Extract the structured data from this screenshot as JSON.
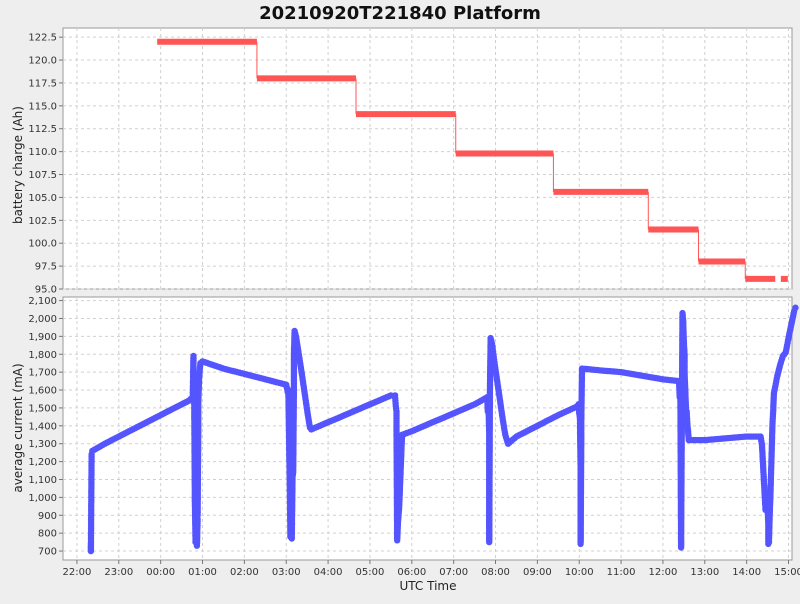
{
  "chart_data": {
    "type": "line",
    "title": "20210920T221840 Platform",
    "xlabel": "UTC Time",
    "x_ticks": [
      "22:00",
      "23:00",
      "00:00",
      "01:00",
      "02:00",
      "03:00",
      "04:00",
      "05:00",
      "06:00",
      "07:00",
      "08:00",
      "09:00",
      "10:00",
      "11:00",
      "12:00",
      "13:00",
      "14:00",
      "15:00"
    ],
    "x_range": [
      "21:40",
      "15:05"
    ],
    "grid": true,
    "colors": {
      "charge": "#ff5555",
      "current": "#5555ff",
      "plot_bg": "#ffffff",
      "page_bg": "#eeeeee",
      "grid": "#d0d0d0"
    },
    "panels": [
      {
        "id": "charge",
        "type": "step",
        "ylabel": "battery charge (Ah)",
        "ylim": [
          95.0,
          123.5
        ],
        "y_ticks": [
          "95.0",
          "97.5",
          "100.0",
          "102.5",
          "105.0",
          "107.5",
          "110.0",
          "112.5",
          "115.0",
          "117.5",
          "120.0",
          "122.5"
        ],
        "series": [
          {
            "segments": [
              {
                "start": "23:55",
                "end": "02:18",
                "value": 122.0
              },
              {
                "start": "02:18",
                "end": "04:40",
                "value": 118.0
              },
              {
                "start": "04:40",
                "end": "07:03",
                "value": 114.1
              },
              {
                "start": "07:03",
                "end": "09:23",
                "value": 109.8
              },
              {
                "start": "09:23",
                "end": "11:39",
                "value": 105.6
              },
              {
                "start": "11:39",
                "end": "12:51",
                "value": 101.5
              },
              {
                "start": "12:51",
                "end": "13:58",
                "value": 98.0
              },
              {
                "start": "13:58",
                "end": "14:41",
                "value": 96.1
              },
              {
                "start": "14:49",
                "end": "14:59",
                "value": 96.1
              }
            ]
          }
        ]
      },
      {
        "id": "current",
        "type": "line",
        "ylabel": "average current (mA)",
        "ylim": [
          650,
          2120
        ],
        "y_ticks": [
          "700",
          "800",
          "900",
          "1,000",
          "1,100",
          "1,200",
          "1,300",
          "1,400",
          "1,500",
          "1,600",
          "1,700",
          "1,800",
          "1,900",
          "2,000",
          "2,100"
        ],
        "series": [
          {
            "points": [
              [
                "22:20",
                740
              ],
              [
                "22:20",
                700
              ],
              [
                "22:21",
                1240
              ],
              [
                "22:22",
                1260
              ],
              [
                "22:40",
                1300
              ],
              [
                "23:00",
                1340
              ],
              [
                "23:20",
                1380
              ],
              [
                "23:40",
                1420
              ],
              [
                "00:00",
                1460
              ],
              [
                "00:20",
                1500
              ],
              [
                "00:40",
                1540
              ],
              [
                "00:46",
                1560
              ],
              [
                "00:47",
                1790
              ],
              [
                "00:47",
                1720
              ],
              [
                "00:48",
                1610
              ],
              [
                "00:49",
                980
              ],
              [
                "00:50",
                750
              ],
              [
                "00:52",
                730
              ],
              [
                "00:53",
                880
              ],
              [
                "00:53",
                900
              ],
              [
                "00:54",
                1390
              ],
              [
                "00:54",
                1530
              ],
              [
                "00:55",
                1650
              ],
              [
                "00:56",
                1710
              ],
              [
                "00:57",
                1750
              ],
              [
                "01:00",
                1760
              ],
              [
                "01:30",
                1720
              ],
              [
                "02:00",
                1690
              ],
              [
                "02:30",
                1660
              ],
              [
                "03:00",
                1630
              ],
              [
                "03:02",
                1590
              ],
              [
                "03:03",
                1600
              ],
              [
                "03:05",
                1090
              ],
              [
                "03:06",
                780
              ],
              [
                "03:08",
                770
              ],
              [
                "03:09",
                1110
              ],
              [
                "03:10",
                1140
              ],
              [
                "03:11",
                1600
              ],
              [
                "03:11",
                1730
              ],
              [
                "03:11",
                1800
              ],
              [
                "03:12",
                1930
              ],
              [
                "03:14",
                1900
              ],
              [
                "03:16",
                1850
              ],
              [
                "03:18",
                1800
              ],
              [
                "03:20",
                1750
              ],
              [
                "03:22",
                1700
              ],
              [
                "03:25",
                1620
              ],
              [
                "03:28",
                1540
              ],
              [
                "03:31",
                1460
              ],
              [
                "03:34",
                1390
              ],
              [
                "03:36",
                1380
              ],
              [
                "04:00",
                1420
              ],
              [
                "04:30",
                1470
              ],
              [
                "05:00",
                1520
              ],
              [
                "05:30",
                1570
              ],
              [
                "05:36",
                1570
              ],
              [
                "05:37",
                1510
              ],
              [
                "05:38",
                1480
              ],
              [
                "05:38",
                1430
              ],
              [
                "05:39",
                760
              ],
              [
                "05:40",
                850
              ],
              [
                "05:41",
                900
              ],
              [
                "05:42",
                950
              ],
              [
                "05:43",
                1050
              ],
              [
                "05:44",
                1150
              ],
              [
                "05:45",
                1250
              ],
              [
                "05:46",
                1350
              ],
              [
                "06:00",
                1370
              ],
              [
                "06:30",
                1420
              ],
              [
                "07:00",
                1470
              ],
              [
                "07:30",
                1520
              ],
              [
                "07:48",
                1560
              ],
              [
                "07:49",
                1480
              ],
              [
                "07:50",
                1500
              ],
              [
                "07:51",
                1350
              ],
              [
                "07:51",
                750
              ],
              [
                "07:52",
                1600
              ],
              [
                "07:53",
                1890
              ],
              [
                "07:55",
                1860
              ],
              [
                "07:57",
                1800
              ],
              [
                "07:59",
                1740
              ],
              [
                "08:02",
                1660
              ],
              [
                "08:05",
                1580
              ],
              [
                "08:08",
                1500
              ],
              [
                "08:11",
                1420
              ],
              [
                "08:14",
                1350
              ],
              [
                "08:17",
                1310
              ],
              [
                "08:18",
                1300
              ],
              [
                "08:30",
                1340
              ],
              [
                "09:00",
                1400
              ],
              [
                "09:30",
                1460
              ],
              [
                "09:58",
                1510
              ],
              [
                "09:59",
                1520
              ],
              [
                "10:00",
                1470
              ],
              [
                "10:01",
                1440
              ],
              [
                "10:02",
                1150
              ],
              [
                "10:02",
                740
              ],
              [
                "10:03",
                1350
              ],
              [
                "10:03",
                1430
              ],
              [
                "10:04",
                1720
              ],
              [
                "10:30",
                1710
              ],
              [
                "11:00",
                1700
              ],
              [
                "11:30",
                1680
              ],
              [
                "12:00",
                1660
              ],
              [
                "12:23",
                1650
              ],
              [
                "12:24",
                1560
              ],
              [
                "12:25",
                1580
              ],
              [
                "12:26",
                720
              ],
              [
                "12:28",
                2030
              ],
              [
                "12:29",
                1990
              ],
              [
                "12:30",
                1870
              ],
              [
                "12:31",
                1800
              ],
              [
                "12:31",
                1700
              ],
              [
                "12:32",
                1600
              ],
              [
                "12:33",
                1500
              ],
              [
                "12:34",
                1480
              ],
              [
                "12:35",
                1410
              ],
              [
                "12:36",
                1370
              ],
              [
                "12:37",
                1320
              ],
              [
                "13:00",
                1320
              ],
              [
                "13:30",
                1330
              ],
              [
                "14:00",
                1340
              ],
              [
                "14:20",
                1340
              ],
              [
                "14:22",
                1290
              ],
              [
                "14:27",
                930
              ],
              [
                "14:30",
                940
              ],
              [
                "14:31",
                850
              ],
              [
                "14:31",
                740
              ],
              [
                "14:32",
                750
              ],
              [
                "14:33",
                900
              ],
              [
                "14:34",
                1000
              ],
              [
                "14:35",
                1140
              ],
              [
                "14:36",
                1270
              ],
              [
                "14:37",
                1410
              ],
              [
                "14:38",
                1480
              ],
              [
                "14:39",
                1580
              ],
              [
                "14:41",
                1620
              ],
              [
                "14:44",
                1680
              ],
              [
                "14:48",
                1740
              ],
              [
                "14:52",
                1790
              ],
              [
                "14:56",
                1810
              ],
              [
                "15:00",
                1890
              ],
              [
                "15:08",
                2040
              ],
              [
                "15:10",
                2060
              ]
            ]
          }
        ]
      }
    ]
  }
}
